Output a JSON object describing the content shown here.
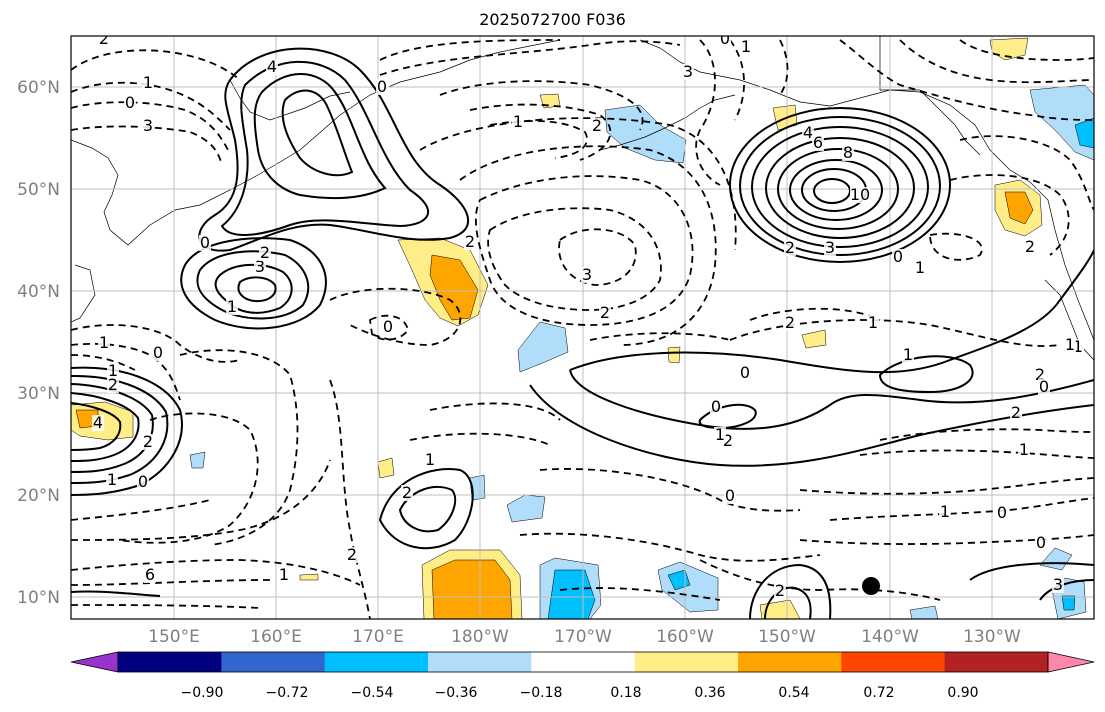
{
  "title": "2025072700 F036",
  "map": {
    "lat_labels": [
      "60°N",
      "50°N",
      "40°N",
      "30°N",
      "20°N",
      "10°N"
    ],
    "lon_labels": [
      "150°E",
      "160°E",
      "170°E",
      "180°W",
      "170°W",
      "160°W",
      "150°W",
      "140°W",
      "130°W"
    ],
    "contour_labels": [
      "2",
      "1",
      "0",
      "3",
      "4",
      "0",
      "1",
      "2",
      "3",
      "0",
      "1",
      "4",
      "6",
      "8",
      "10",
      "3",
      "2",
      "0",
      "1",
      "2",
      "3",
      "2",
      "0",
      "3",
      "2",
      "1",
      "0",
      "1",
      "0",
      "1",
      "2",
      "0",
      "1",
      "2",
      "1",
      "2",
      "0",
      "1",
      "2",
      "0",
      "2",
      "1",
      "1",
      "0",
      "0",
      "1",
      "2",
      "2",
      "6",
      "4",
      "2",
      "1",
      "0",
      "2",
      "3",
      "1",
      "0",
      "2",
      "1",
      "1"
    ],
    "shading_colors": {
      "pos_018": "#ffee88",
      "pos_036": "#ffa500",
      "neg_018": "#b0ddfa",
      "neg_036": "#00bfff"
    }
  },
  "colorbar": {
    "tick_labels": [
      "−0.90",
      "−0.72",
      "−0.54",
      "−0.36",
      "−0.18",
      "0.18",
      "0.36",
      "0.54",
      "0.72",
      "0.90"
    ],
    "colors": [
      "#9933cc",
      "#000080",
      "#3366cc",
      "#00bfff",
      "#b0ddfa",
      "#ffffff",
      "#ffee88",
      "#ffa500",
      "#ff4500",
      "#b22222",
      "#ff88aa"
    ]
  }
}
